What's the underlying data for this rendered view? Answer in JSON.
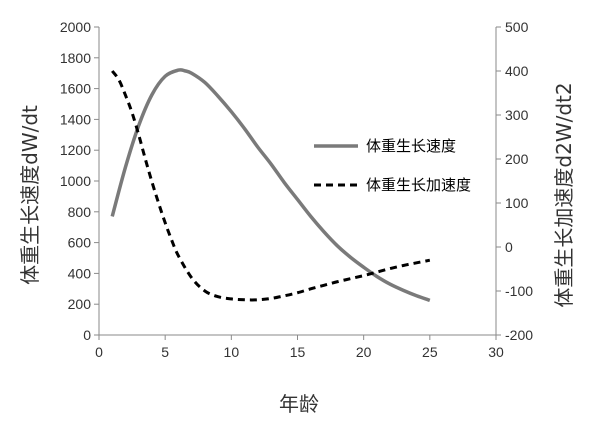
{
  "chart_data": {
    "type": "line",
    "title": "",
    "xlabel": "年龄",
    "ylabel": "体重生长速度dW/dt",
    "ylabel_right": "体重生长加速度d2W/dt2",
    "xlim": [
      0,
      30
    ],
    "ylim": [
      0,
      2000
    ],
    "ylim_right": [
      -200,
      500
    ],
    "x_ticks": [
      0,
      5,
      10,
      15,
      20,
      25,
      30
    ],
    "y_ticks": [
      0,
      200,
      400,
      600,
      800,
      1000,
      1200,
      1400,
      1600,
      1800,
      2000
    ],
    "y_right_ticks": [
      -200,
      -100,
      0,
      100,
      200,
      300,
      400,
      500
    ],
    "grid": false,
    "legend_position": "right",
    "series": [
      {
        "name": "体重生长速度",
        "axis": "left",
        "style": "solid",
        "color": "#7a7a7a",
        "x": [
          1,
          2,
          3,
          4,
          5,
          6,
          6.5,
          7,
          8,
          9,
          10,
          11,
          12,
          13,
          14,
          15,
          16,
          17,
          18,
          19,
          20,
          21,
          22,
          23,
          24,
          25
        ],
        "y": [
          770,
          1090,
          1360,
          1560,
          1680,
          1720,
          1715,
          1700,
          1640,
          1550,
          1450,
          1340,
          1220,
          1110,
          990,
          880,
          770,
          670,
          580,
          505,
          440,
          380,
          330,
          290,
          255,
          225
        ]
      },
      {
        "name": "体重生长加速度",
        "axis": "right",
        "style": "dashed",
        "color": "#000000",
        "x": [
          1,
          1.5,
          2,
          2.5,
          3,
          3.5,
          4,
          4.5,
          5,
          5.5,
          6,
          7,
          8,
          9,
          10,
          11,
          12,
          13,
          14,
          15,
          16,
          17,
          18,
          19,
          20,
          21,
          22,
          23,
          24,
          25
        ],
        "y": [
          400,
          380,
          345,
          305,
          255,
          200,
          148,
          100,
          55,
          15,
          -20,
          -70,
          -100,
          -113,
          -118,
          -120,
          -120,
          -117,
          -111,
          -104,
          -95,
          -87,
          -79,
          -72,
          -65,
          -57,
          -49,
          -42,
          -36,
          -30
        ]
      }
    ]
  }
}
